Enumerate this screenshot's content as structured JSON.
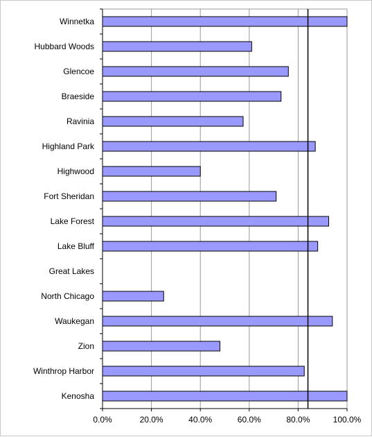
{
  "chart_data": {
    "type": "bar",
    "orientation": "horizontal",
    "categories": [
      "Winnetka",
      "Hubbard Woods",
      "Glencoe",
      "Braeside",
      "Ravinia",
      "Highland Park",
      "Highwood",
      "Fort Sheridan",
      "Lake Forest",
      "Lake Bluff",
      "Great Lakes",
      "North Chicago",
      "Waukegan",
      "Zion",
      "Winthrop Harbor",
      "Kenosha"
    ],
    "values": [
      100.0,
      61.0,
      76.0,
      73.0,
      57.5,
      87.0,
      40.0,
      71.0,
      92.5,
      88.0,
      0,
      25.0,
      94.0,
      48.0,
      82.5,
      100.0
    ],
    "xlim": [
      0,
      100
    ],
    "xticks": [
      "0.0%",
      "20.0%",
      "40.0%",
      "60.0%",
      "80.0%",
      "100.0%"
    ],
    "reference_line": 84,
    "gridlines": true,
    "bar_color": "#9999ff",
    "title": "",
    "xlabel": "",
    "ylabel": ""
  }
}
